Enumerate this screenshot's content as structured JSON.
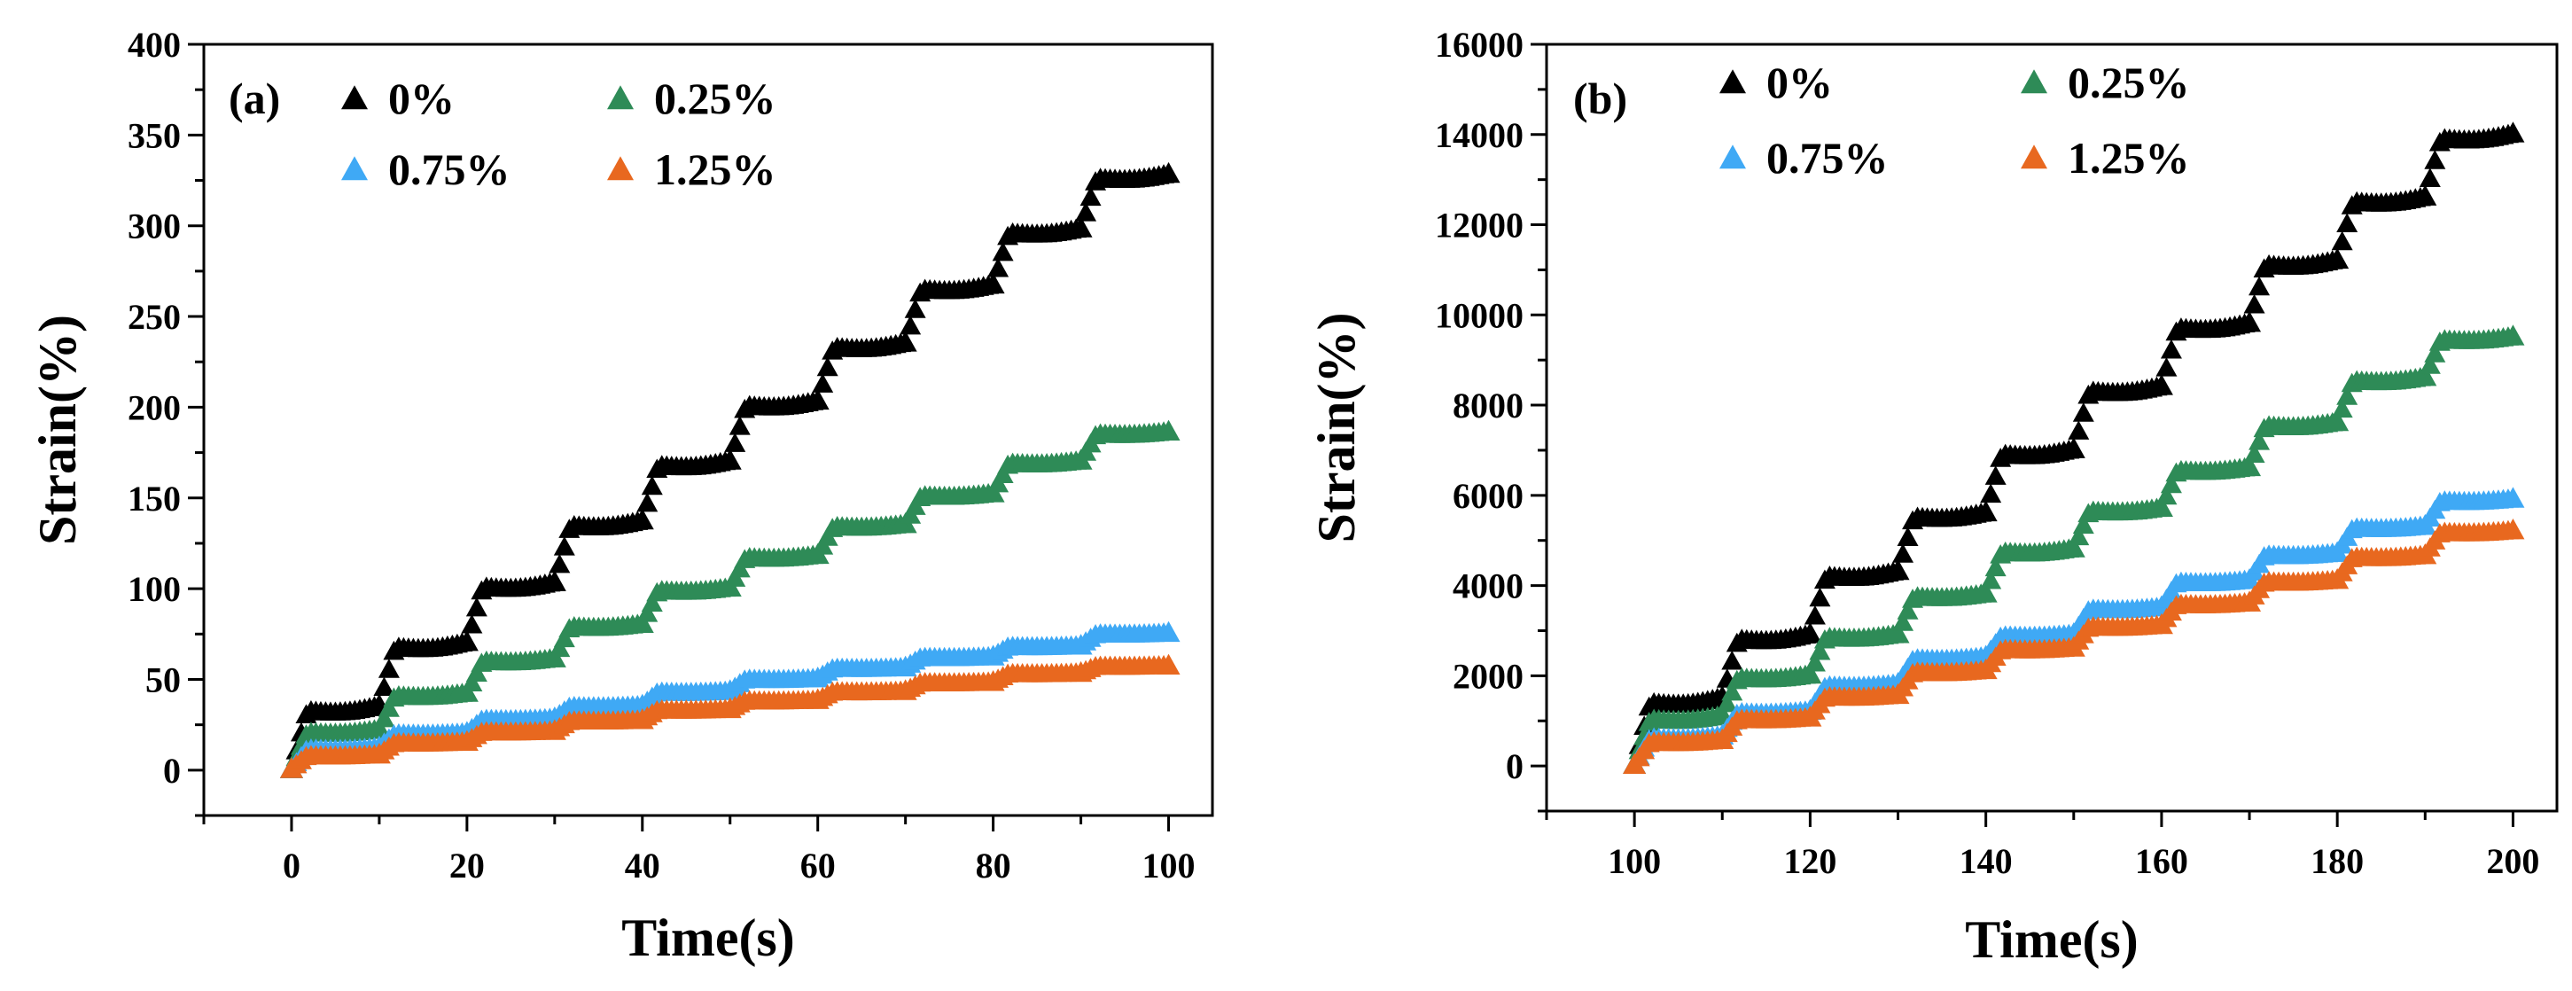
{
  "chart_data": [
    {
      "type": "scatter",
      "panel_label": "(a)",
      "xlabel": "Time(s)",
      "ylabel": "Strain(%)",
      "xlim": [
        -10,
        105
      ],
      "ylim": [
        -25,
        400
      ],
      "xticks": [
        0,
        20,
        40,
        60,
        80,
        100
      ],
      "yticks": [
        0,
        50,
        100,
        150,
        200,
        250,
        300,
        350,
        400
      ],
      "legend_position": "top",
      "grid": false,
      "step_period_s": 10,
      "series": [
        {
          "name": "0%",
          "color": "#000000",
          "x": [
            0,
            10,
            20,
            30,
            40,
            50,
            60,
            70,
            80,
            90,
            100
          ],
          "y": [
            0,
            35,
            70,
            103,
            137,
            170,
            203,
            235,
            267,
            298,
            328
          ]
        },
        {
          "name": "0.25%",
          "color": "#2e8b57",
          "x": [
            0,
            10,
            20,
            30,
            40,
            50,
            60,
            70,
            80,
            90,
            100
          ],
          "y": [
            0,
            22,
            42,
            61,
            80,
            100,
            118,
            135,
            152,
            170,
            186
          ]
        },
        {
          "name": "0.75%",
          "color": "#3fa9f5",
          "x": [
            0,
            10,
            20,
            30,
            40,
            50,
            60,
            70,
            80,
            90,
            100
          ],
          "y": [
            0,
            12,
            20,
            28,
            35,
            43,
            50,
            56,
            62,
            68,
            75
          ]
        },
        {
          "name": "1.25%",
          "color": "#e8681f",
          "x": [
            0,
            10,
            20,
            30,
            40,
            50,
            60,
            70,
            80,
            90,
            100
          ],
          "y": [
            0,
            8,
            15,
            21,
            27,
            33,
            38,
            43,
            48,
            53,
            57
          ]
        }
      ]
    },
    {
      "type": "scatter",
      "panel_label": "(b)",
      "xlabel": "Time(s)",
      "ylabel": "Strain(%)",
      "xlim": [
        90,
        205
      ],
      "ylim": [
        -1000,
        16000
      ],
      "xticks": [
        100,
        120,
        140,
        160,
        180,
        200
      ],
      "yticks": [
        0,
        2000,
        4000,
        6000,
        8000,
        10000,
        12000,
        14000,
        16000
      ],
      "legend_position": "top",
      "grid": false,
      "step_period_s": 10,
      "series": [
        {
          "name": "0%",
          "color": "#000000",
          "x": [
            100,
            110,
            120,
            130,
            140,
            150,
            160,
            170,
            180,
            190,
            200
          ],
          "y": [
            0,
            1500,
            2900,
            4300,
            5600,
            7000,
            8400,
            9800,
            11200,
            12600,
            14000
          ]
        },
        {
          "name": "0.25%",
          "color": "#2e8b57",
          "x": [
            100,
            110,
            120,
            130,
            140,
            150,
            160,
            170,
            180,
            190,
            200
          ],
          "y": [
            0,
            1100,
            2000,
            2900,
            3800,
            4800,
            5700,
            6600,
            7600,
            8600,
            9500
          ]
        },
        {
          "name": "0.75%",
          "color": "#3fa9f5",
          "x": [
            100,
            110,
            120,
            130,
            140,
            150,
            160,
            170,
            180,
            190,
            200
          ],
          "y": [
            0,
            650,
            1200,
            1800,
            2400,
            2900,
            3500,
            4100,
            4700,
            5300,
            5900
          ]
        },
        {
          "name": "1.25%",
          "color": "#e8681f",
          "x": [
            100,
            110,
            120,
            130,
            140,
            150,
            160,
            170,
            180,
            190,
            200
          ],
          "y": [
            0,
            550,
            1050,
            1550,
            2100,
            2600,
            3100,
            3600,
            4100,
            4650,
            5200
          ]
        }
      ]
    }
  ]
}
